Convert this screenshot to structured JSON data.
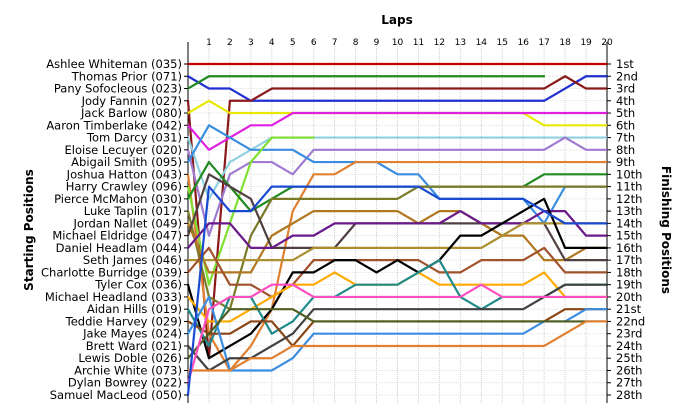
{
  "chart_data": {
    "type": "line",
    "title": "",
    "xlabel": "Laps",
    "ylabel_left": "Starting Positions",
    "ylabel_right": "Finishing Positions",
    "laps": [
      1,
      2,
      3,
      4,
      5,
      6,
      7,
      8,
      9,
      10,
      11,
      12,
      13,
      14,
      15,
      16,
      17,
      18,
      19,
      20
    ],
    "xlim": [
      0,
      20
    ],
    "ylim": [
      1,
      28
    ],
    "grid": true,
    "starting_labels": [
      "Ashlee Whiteman (035)",
      "Thomas Prior (071)",
      "Pany Sofocleous (023)",
      "Jody Fannin (027)",
      "Jack Barlow (080)",
      "Aaron Timberlake (042)",
      "Tom Darcy (031)",
      "Eloise Lecuyer (020)",
      "Abigail Smith (095)",
      "Joshua Hatton (043)",
      "Harry Crawley (096)",
      "Pierce McMahon (030)",
      "Luke Taplin (017)",
      "Jordan Nallet (049)",
      "Michael Eldridge (047)",
      "Daniel Headlam (044)",
      "Seth James (046)",
      "Charlotte Burridge (039)",
      "Tyler Cox (036)",
      "Michael Headland (033)",
      "Aidan Hills (019)",
      "Teddie Harvey (029)",
      "Jake Mayes (024)",
      "Brett Ward (021)",
      "Lewis Doble (026)",
      "Archie White (073)",
      "Dylan Bowrey (022)",
      "Samuel MacLeod (050)"
    ],
    "finishing_labels": [
      "1st",
      "2nd",
      "3rd",
      "4th",
      "5th",
      "6th",
      "7th",
      "8th",
      "9th",
      "10th",
      "11th",
      "12th",
      "13th",
      "14th",
      "15th",
      "16th",
      "17th",
      "18th",
      "19th",
      "20th",
      "21st",
      "22nd",
      "23rd",
      "24th",
      "25th",
      "26th",
      "27th",
      "28th"
    ],
    "series": [
      {
        "color": "#c00000",
        "values": [
          1,
          1,
          1,
          1,
          1,
          1,
          1,
          1,
          1,
          1,
          1,
          1,
          1,
          1,
          1,
          1,
          1,
          1,
          1,
          1,
          1
        ]
      },
      {
        "color": "#1f2fd0",
        "values": [
          2,
          3,
          3,
          4,
          4,
          4,
          4,
          4,
          4,
          4,
          4,
          4,
          4,
          4,
          4,
          4,
          4,
          4,
          3,
          2,
          2
        ]
      },
      {
        "color": "#208a20",
        "values": [
          3,
          2,
          2,
          2,
          2,
          2,
          2,
          2,
          2,
          2,
          2,
          2,
          2,
          2,
          2,
          2,
          2,
          2
        ]
      },
      {
        "color": "#8a1a1a",
        "values": [
          4,
          25,
          4,
          4,
          3,
          3,
          3,
          3,
          3,
          3,
          3,
          3,
          3,
          3,
          3,
          3,
          3,
          3,
          2,
          3,
          3
        ]
      },
      {
        "color": "#e8e800",
        "values": [
          5,
          4,
          5,
          5,
          5,
          5,
          5,
          5,
          5,
          5,
          5,
          5,
          5,
          5,
          5,
          5,
          5,
          6,
          6,
          6,
          6
        ]
      },
      {
        "color": "#e020e0",
        "values": [
          6,
          8,
          7,
          6,
          6,
          5,
          5,
          5,
          5,
          5,
          5,
          5,
          5,
          5,
          5,
          5,
          5,
          5,
          5,
          5,
          5
        ]
      },
      {
        "color": "#90d0e0",
        "values": [
          7,
          12,
          9,
          8,
          7,
          7,
          7,
          7,
          7,
          7,
          7,
          7,
          7,
          7,
          7,
          7,
          7,
          7,
          7,
          7,
          7
        ]
      },
      {
        "color": "#a07ad0",
        "values": [
          8,
          15,
          10,
          9,
          9,
          10,
          8,
          8,
          8,
          8,
          8,
          8,
          8,
          8,
          8,
          8,
          8,
          8,
          7,
          8,
          8
        ]
      },
      {
        "color": "#3a8de0",
        "values": [
          9,
          6,
          7,
          8,
          8,
          8,
          9,
          9,
          9,
          9,
          10,
          10,
          12,
          12,
          12,
          12,
          12,
          14,
          11,
          11,
          11
        ]
      },
      {
        "color": "#e08030",
        "values": [
          10,
          23,
          26,
          24,
          21,
          13,
          10,
          10,
          9,
          9,
          9,
          9,
          9,
          9,
          9,
          9,
          9,
          9,
          9,
          9,
          9
        ]
      },
      {
        "color": "#7fdf30",
        "values": [
          11,
          19,
          14,
          9,
          7,
          7,
          7
        ]
      },
      {
        "color": "#208a20",
        "values": [
          12,
          9,
          11,
          13,
          12,
          11,
          11,
          11,
          11,
          11,
          11,
          11,
          11,
          11,
          11,
          11,
          11,
          10,
          10,
          10,
          10
        ]
      },
      {
        "color": "#7a7a28",
        "values": [
          13,
          20,
          21,
          15,
          12,
          12,
          12,
          12,
          12,
          12,
          12,
          11,
          11,
          11,
          11,
          11,
          11,
          11,
          11,
          11,
          11
        ]
      },
      {
        "color": "#b07820",
        "values": [
          14,
          18,
          18,
          18,
          15,
          14,
          13,
          13,
          13,
          13,
          13,
          14,
          13,
          13,
          14,
          15,
          15,
          17,
          17,
          16,
          16
        ]
      },
      {
        "color": "#504040",
        "values": [
          15,
          10,
          11,
          12,
          16,
          16,
          16,
          16,
          14,
          14,
          14,
          14,
          14,
          14,
          14,
          14,
          14,
          14,
          17,
          17,
          17
        ]
      },
      {
        "color": "#6a1a8a",
        "values": [
          16,
          14,
          14,
          16,
          16,
          15,
          15,
          14,
          14,
          14,
          14,
          14,
          14,
          13,
          14,
          14,
          14,
          13,
          13,
          15,
          15
        ]
      },
      {
        "color": "#ac8f30",
        "values": [
          17,
          17,
          17,
          17,
          17,
          17,
          16,
          16,
          16,
          16,
          16,
          16,
          16,
          16,
          16,
          15,
          14,
          14,
          14,
          14,
          14
        ]
      },
      {
        "color": "#a0522d",
        "values": [
          18,
          16,
          19,
          19,
          20,
          19,
          17,
          17,
          17,
          17,
          17,
          17,
          18,
          18,
          17,
          17,
          17,
          16,
          18,
          18,
          18
        ]
      },
      {
        "color": "#000000",
        "values": [
          19,
          25,
          24,
          23,
          21,
          18,
          18,
          17,
          17,
          18,
          17,
          18,
          17,
          15,
          15,
          14,
          13,
          12,
          16,
          16,
          16
        ]
      },
      {
        "color": "#ffaa00",
        "values": [
          20,
          22,
          22,
          21,
          20,
          19,
          19,
          18,
          19,
          19,
          19,
          18,
          19,
          19,
          19,
          19,
          19,
          18,
          20,
          20,
          20
        ]
      },
      {
        "color": "#208a8a",
        "values": [
          21,
          24,
          20,
          20,
          23,
          22,
          20,
          20,
          19,
          19,
          19,
          18,
          17,
          20,
          21,
          20,
          20,
          20,
          19,
          19,
          19
        ]
      },
      {
        "color": "#8b4513",
        "values": [
          22,
          23,
          23,
          22,
          22,
          24,
          22,
          22,
          22,
          22,
          22,
          22,
          22,
          22,
          22,
          22,
          22,
          22,
          21,
          21,
          21
        ]
      },
      {
        "color": "#3a8de0",
        "values": [
          23,
          20,
          26,
          26,
          26,
          25,
          23,
          23,
          23,
          23,
          23,
          23,
          23,
          23,
          23,
          23,
          23,
          22,
          22,
          21,
          21
        ]
      },
      {
        "color": "#404040",
        "values": [
          24,
          26,
          25,
          25,
          24,
          23,
          21,
          21,
          21,
          21,
          21,
          21,
          21,
          21,
          21,
          21,
          21,
          20,
          19,
          19,
          19
        ]
      },
      {
        "color": "#505e20",
        "values": [
          25,
          23,
          21,
          21,
          21,
          21,
          22,
          22,
          22,
          22,
          22,
          22,
          22,
          22,
          22,
          22,
          22,
          22,
          22,
          22,
          22
        ]
      },
      {
        "color": "#e08030",
        "values": [
          26,
          26,
          26,
          25,
          25,
          24,
          24,
          24,
          24,
          24,
          24,
          24,
          24,
          24,
          24,
          24,
          24,
          24,
          23,
          22,
          22
        ]
      },
      {
        "color": "#ff4ec0",
        "values": [
          27,
          21,
          20,
          20,
          19,
          19,
          20,
          20,
          20,
          20,
          20,
          20,
          20,
          20,
          19,
          20,
          20,
          20,
          20,
          20,
          20
        ]
      },
      {
        "color": "#1a4ad0",
        "values": [
          28,
          11,
          13,
          13,
          11,
          11,
          11,
          11,
          11,
          11,
          11,
          11,
          12,
          12,
          12,
          12,
          12,
          13,
          14,
          14,
          14
        ]
      }
    ]
  }
}
